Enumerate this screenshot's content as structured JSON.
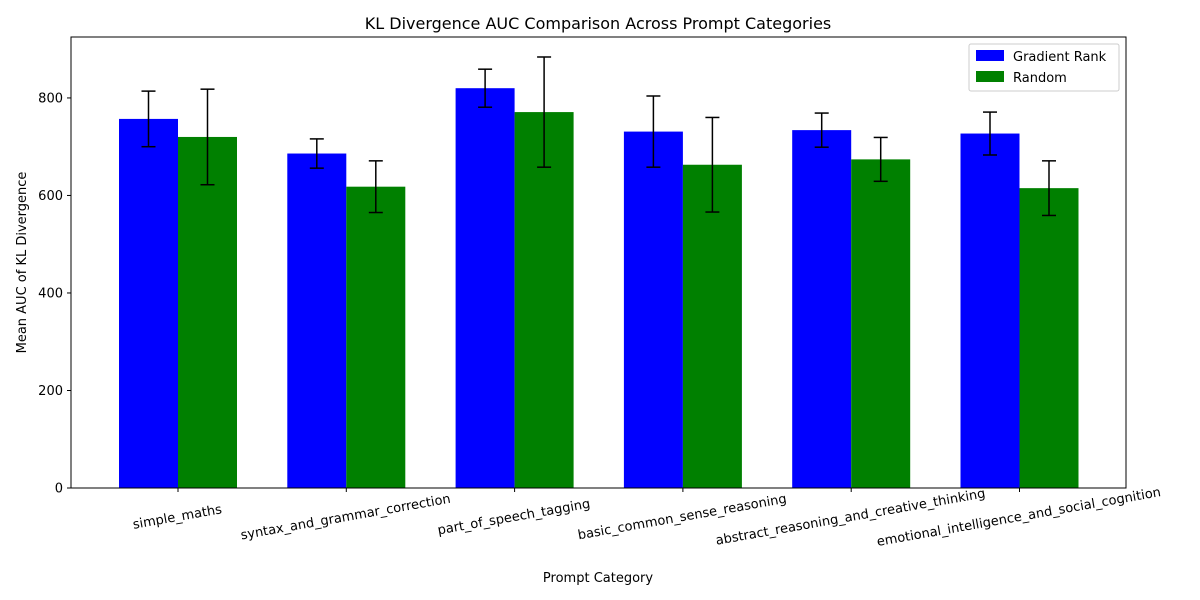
{
  "chart_data": {
    "type": "bar",
    "title": "KL Divergence AUC Comparison Across Prompt Categories",
    "xlabel": "Prompt Category",
    "ylabel": "Mean AUC of KL Divergence",
    "ylim": [
      0,
      925
    ],
    "yticks": [
      0,
      200,
      400,
      600,
      800
    ],
    "grid": false,
    "legend_position": "top-right",
    "categories": [
      "simple_maths",
      "syntax_and_grammar_correction",
      "part_of_speech_tagging",
      "basic_common_sense_reasoning",
      "abstract_reasoning_and_creative_thinking",
      "emotional_intelligence_and_social_cognition"
    ],
    "series": [
      {
        "name": "Gradient Rank",
        "color": "#0000ff",
        "values": [
          757,
          686,
          820,
          731,
          734,
          727
        ],
        "errors": [
          57,
          30,
          39,
          73,
          35,
          44
        ]
      },
      {
        "name": "Random",
        "color": "#008000",
        "values": [
          720,
          618,
          771,
          663,
          674,
          615
        ],
        "errors": [
          98,
          53,
          113,
          97,
          45,
          56
        ]
      }
    ]
  }
}
